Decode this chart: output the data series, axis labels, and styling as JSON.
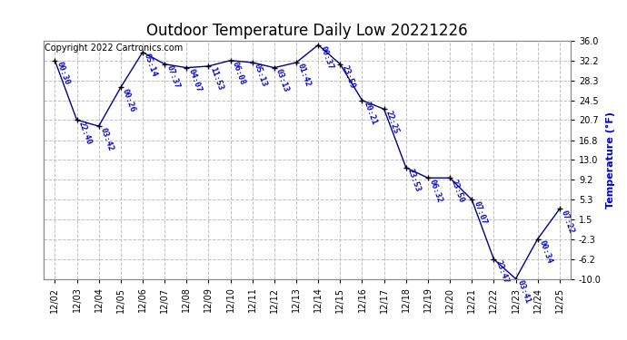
{
  "title": "Outdoor Temperature Daily Low 20221226",
  "ylabel": "Temperature (°F)",
  "copyright": "Copyright 2022 Cartronics.com",
  "background_color": "#ffffff",
  "line_color": "#00008B",
  "point_color": "#000000",
  "annotation_color": "#0000CD",
  "grid_color": "#C0C0C0",
  "dates": [
    "12/02",
    "12/03",
    "12/04",
    "12/05",
    "12/06",
    "12/07",
    "12/08",
    "12/09",
    "12/10",
    "12/11",
    "12/12",
    "12/13",
    "12/14",
    "12/15",
    "12/16",
    "12/17",
    "12/18",
    "12/19",
    "12/20",
    "12/21",
    "12/22",
    "12/23",
    "12/24",
    "12/25"
  ],
  "temperatures": [
    32.2,
    20.7,
    19.5,
    27.0,
    33.8,
    31.5,
    30.8,
    31.1,
    32.2,
    31.8,
    30.8,
    31.8,
    35.2,
    31.5,
    24.5,
    22.8,
    11.5,
    9.5,
    9.5,
    5.3,
    -6.2,
    -10.0,
    -2.3,
    3.5
  ],
  "times": [
    "00:30",
    "22:40",
    "03:42",
    "00:26",
    "05:14",
    "07:37",
    "04:07",
    "11:53",
    "06:08",
    "05:13",
    "03:13",
    "01:42",
    "00:37",
    "23:59",
    "20:21",
    "22:25",
    "23:53",
    "06:32",
    "23:50",
    "07:07",
    "23:47",
    "03:41",
    "00:34",
    "07:22"
  ],
  "ylim": [
    -10.0,
    36.0
  ],
  "yticks": [
    -10.0,
    -6.2,
    -2.3,
    1.5,
    5.3,
    9.2,
    13.0,
    16.8,
    20.7,
    24.5,
    28.3,
    32.2,
    36.0
  ],
  "title_fontsize": 12,
  "label_fontsize": 8,
  "annotation_fontsize": 6.5,
  "copyright_fontsize": 7,
  "tick_fontsize": 7
}
